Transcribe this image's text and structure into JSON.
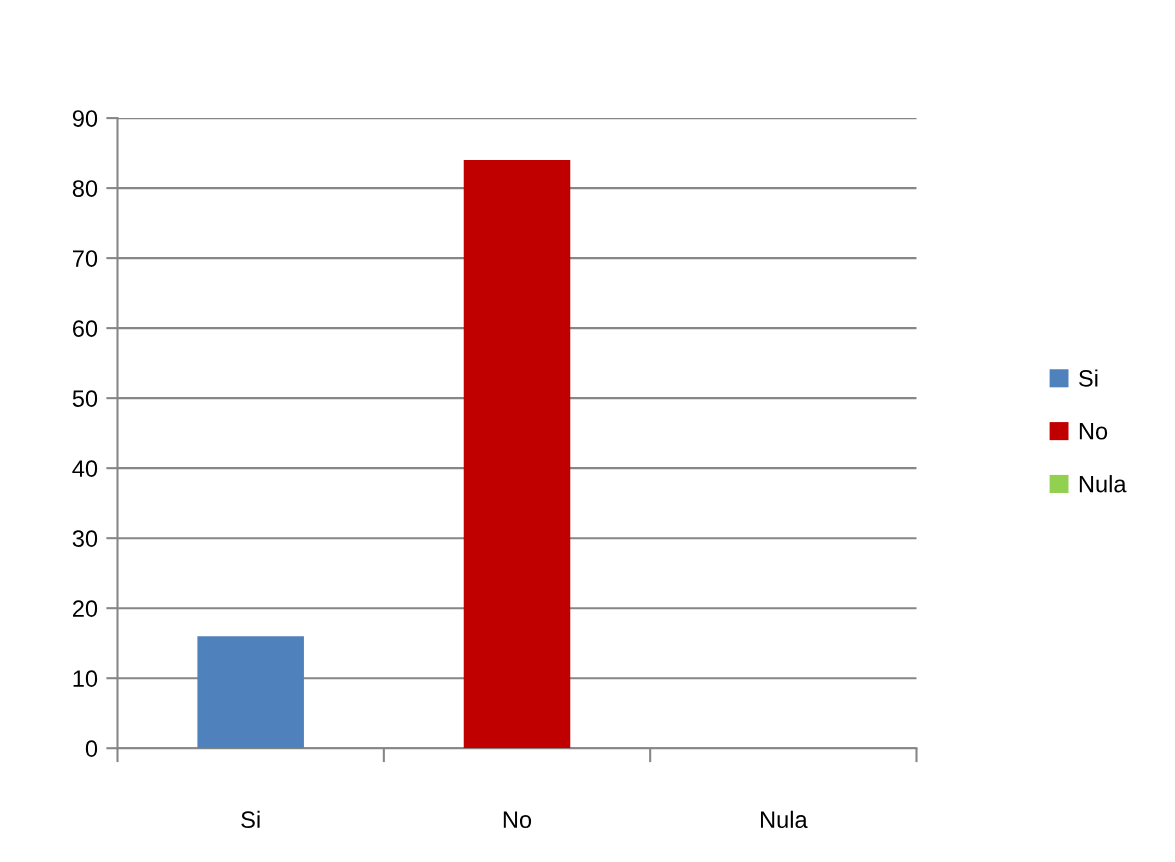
{
  "chart_data": {
    "type": "bar",
    "categories": [
      "Si",
      "No",
      "Nula"
    ],
    "series": [
      {
        "name": "Si",
        "color": "#4f81bd",
        "values": [
          16,
          null,
          null
        ]
      },
      {
        "name": "No",
        "color": "#c00000",
        "values": [
          null,
          84,
          null
        ]
      },
      {
        "name": "Nula",
        "color": "#92d050",
        "values": [
          null,
          null,
          0
        ]
      }
    ],
    "ylim": [
      0,
      90
    ],
    "yticks": [
      0,
      10,
      20,
      30,
      40,
      50,
      60,
      70,
      80,
      90
    ],
    "grid": "y",
    "legend": "right"
  }
}
